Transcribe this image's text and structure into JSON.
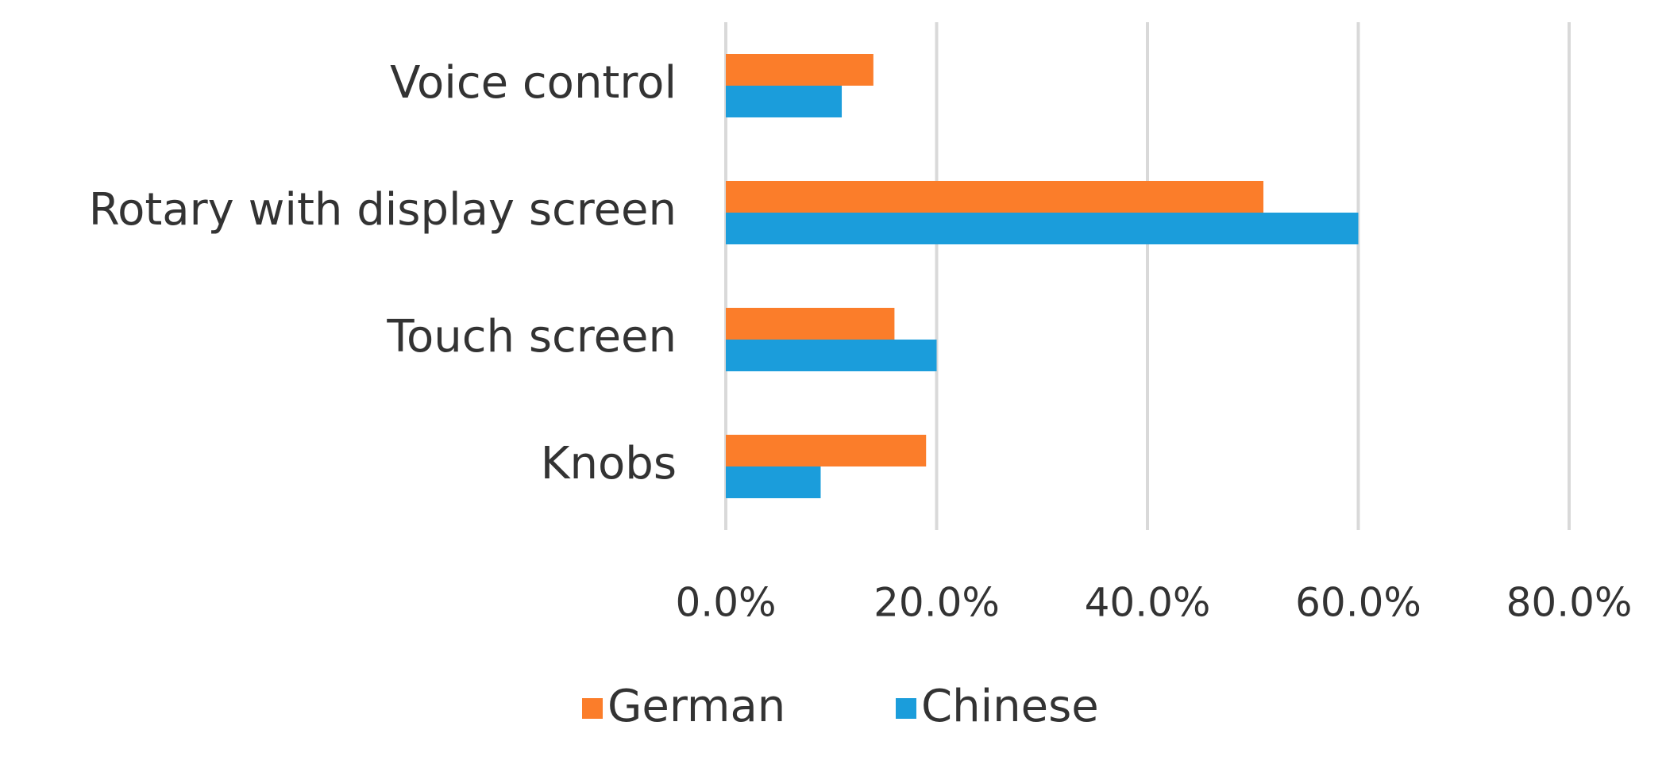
{
  "chart_data": {
    "type": "hbar",
    "categories": [
      "Voice control",
      "Rotary with display screen",
      "Touch screen",
      "Knobs"
    ],
    "series": [
      {
        "name": "German",
        "color": "#fb7d2a",
        "values": [
          14,
          51,
          16,
          19
        ]
      },
      {
        "name": "Chinese",
        "color": "#1b9ddb",
        "values": [
          11,
          60,
          20,
          9
        ]
      }
    ],
    "xlim": [
      0,
      80
    ],
    "xticks": [
      {
        "value": 0,
        "label": "0.0%"
      },
      {
        "value": 20,
        "label": "20.0%"
      },
      {
        "value": 40,
        "label": "40.0%"
      },
      {
        "value": 60,
        "label": "60.0%"
      },
      {
        "value": 80,
        "label": "80.0%"
      }
    ],
    "grid": true,
    "legend": "bottom"
  }
}
